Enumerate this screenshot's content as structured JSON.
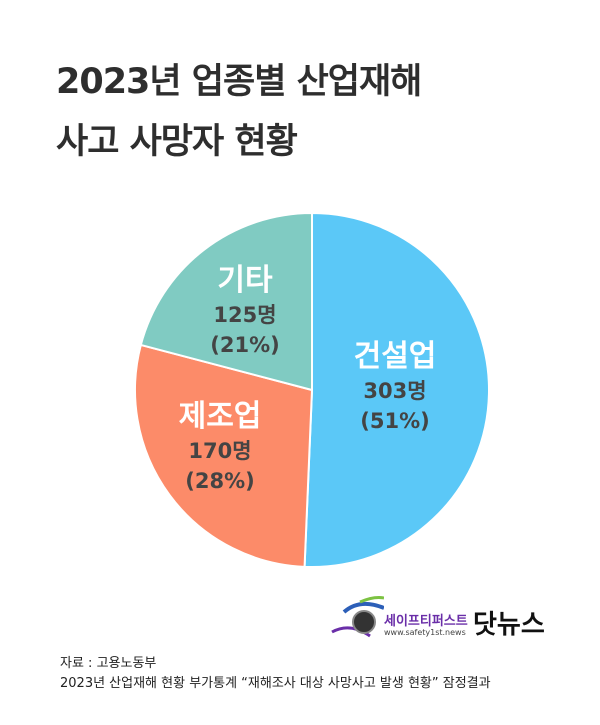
{
  "title_lines": [
    "2023년 업종별 산업재해",
    "사고 사망자 현황"
  ],
  "chart_data": {
    "type": "pie",
    "title": "2023년 업종별 산업재해 사고 사망자 현황",
    "slices": [
      {
        "label": "건설업",
        "value": 303,
        "count_label": "303명",
        "percent_label": "(51%)",
        "color": "#5BC8F7"
      },
      {
        "label": "제조업",
        "value": 170,
        "count_label": "170명",
        "percent_label": "(28%)",
        "color": "#FC8B69"
      },
      {
        "label": "기타",
        "value": 125,
        "count_label": "125명",
        "percent_label": "(21%)",
        "color": "#80CBC2"
      }
    ]
  },
  "logo": {
    "name": "세이프티퍼스트",
    "url": "www.safety1st.news",
    "brand": "닷뉴스"
  },
  "source": [
    "자료 : 고용노동부",
    "2023년 산업재해 현황 부가통계 “재해조사 대상 사망사고 발생 현황” 잠정결과"
  ]
}
